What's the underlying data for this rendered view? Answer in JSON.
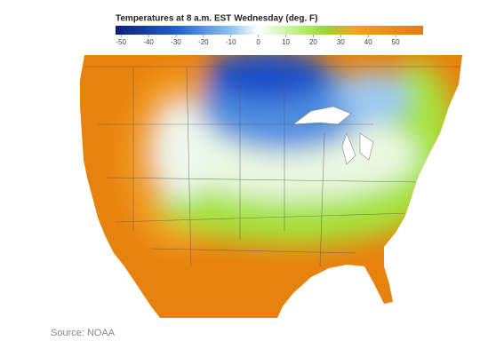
{
  "legend": {
    "title": "Temperatures at 8 a.m. EST Wednesday (deg. F)",
    "range": [
      -52,
      60
    ],
    "ticks": [
      -50,
      -40,
      -30,
      -20,
      -10,
      0,
      10,
      20,
      30,
      40,
      50
    ],
    "color_stops": [
      {
        "value": -52,
        "color": "#0b1f7a"
      },
      {
        "value": -30,
        "color": "#1f5fd0"
      },
      {
        "value": -10,
        "color": "#8ec3f0"
      },
      {
        "value": 0,
        "color": "#ffffff"
      },
      {
        "value": 15,
        "color": "#b6f07a"
      },
      {
        "value": 25,
        "color": "#9bd52a"
      },
      {
        "value": 35,
        "color": "#f2a51a"
      },
      {
        "value": 60,
        "color": "#e67a0a"
      }
    ]
  },
  "source": "Source: NOAA"
}
